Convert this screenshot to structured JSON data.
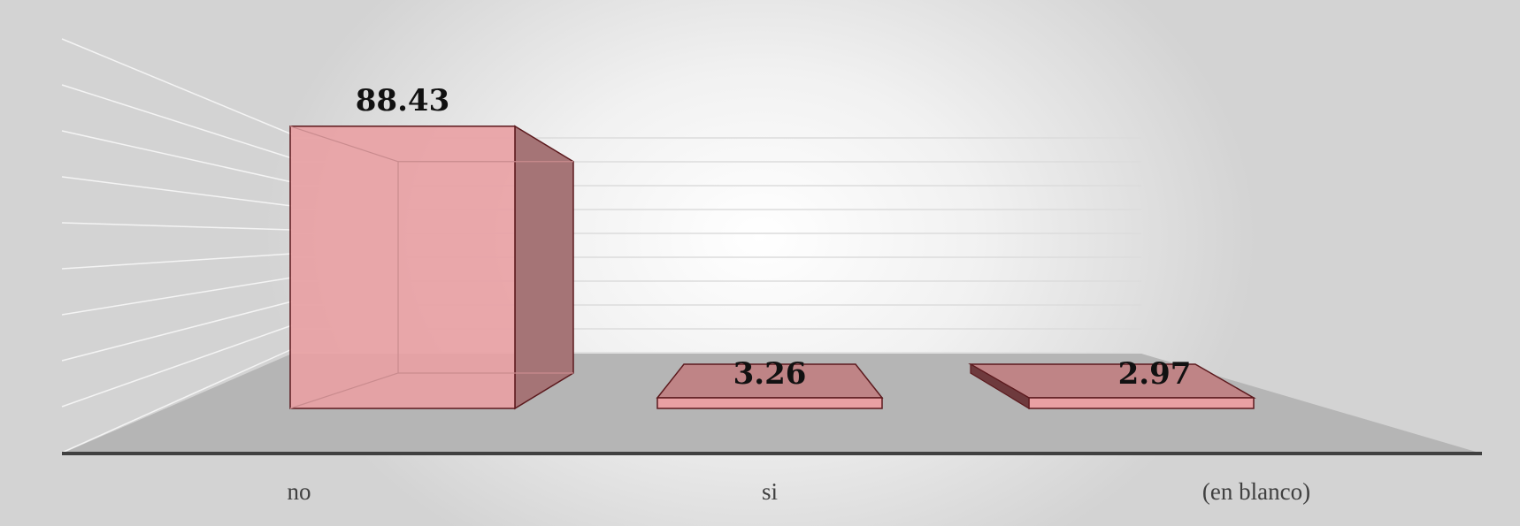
{
  "chart_data": {
    "type": "bar",
    "style": "3d-column",
    "categories": [
      "no",
      "si",
      "(en blanco)"
    ],
    "values": [
      88.43,
      3.26,
      2.97
    ],
    "data_labels": [
      "88.43",
      "3.26",
      "2.97"
    ],
    "ylim": [
      0,
      100
    ],
    "grid": true,
    "legend": "none",
    "bar_color": "#e9a0a3",
    "bar_edge_color": "#5c1a1e",
    "floor_color": "#b5b5b5"
  }
}
